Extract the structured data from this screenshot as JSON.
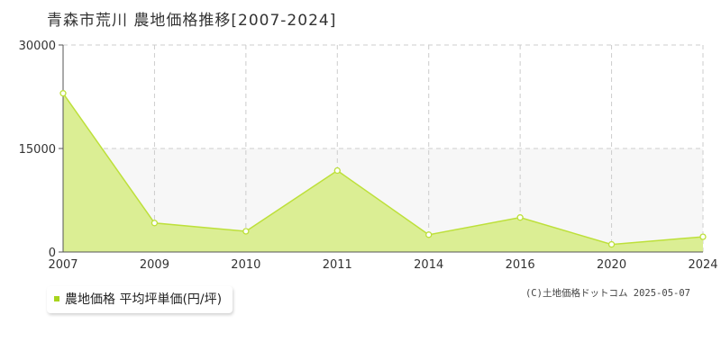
{
  "chart_data": {
    "type": "area",
    "title": "青森市荒川 農地価格推移[2007-2024]",
    "x": [
      "2007",
      "2009",
      "2010",
      "2011",
      "2014",
      "2016",
      "2020",
      "2024"
    ],
    "series": [
      {
        "name": "農地価格 平均坪単価(円/坪)",
        "values": [
          23000,
          4200,
          3000,
          11800,
          2500,
          5000,
          1100,
          2200
        ]
      }
    ],
    "yticks": [
      0,
      15000,
      30000
    ],
    "ylim": [
      0,
      30000
    ],
    "grid": true,
    "legend": "bottom-left",
    "colors": {
      "line": "#bde03a",
      "fill": "#dbee94",
      "point": "#ffffff"
    }
  },
  "footer": {
    "copyright": "(C)土地価格ドットコム 2025-05-07"
  }
}
